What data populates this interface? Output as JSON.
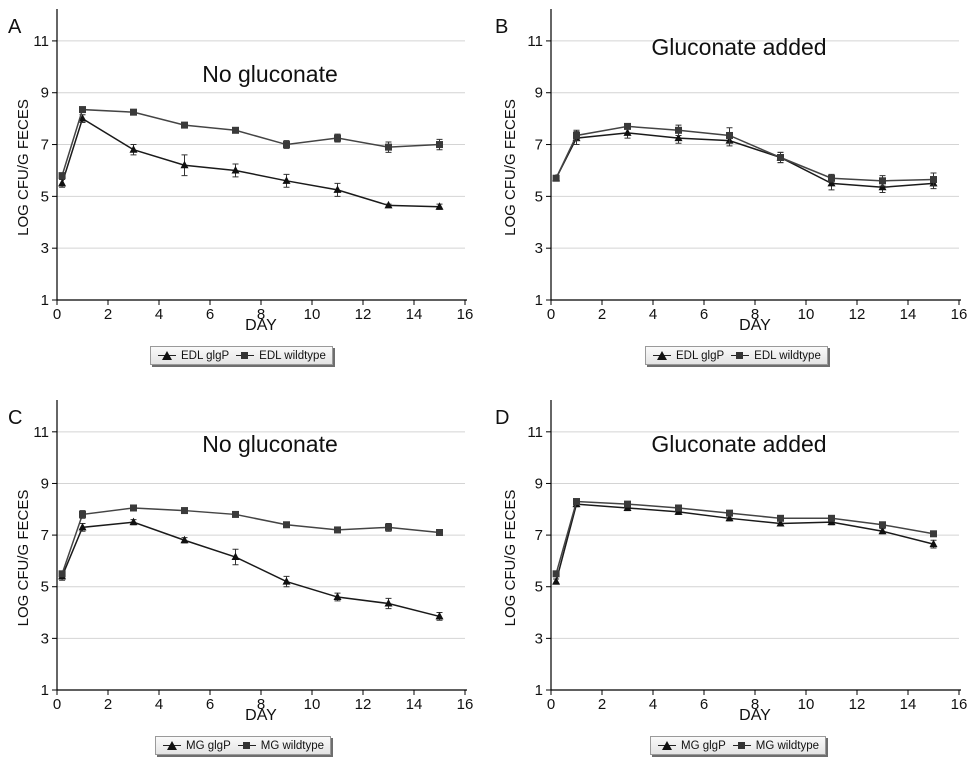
{
  "chart_data": [
    {
      "panel_label": "A",
      "type": "line",
      "title": "No gluconate",
      "xlabel": "DAY",
      "ylabel": "LOG CFU/G FECES",
      "xlim": [
        0,
        16
      ],
      "ylim": [
        1,
        12
      ],
      "xticks": [
        "0",
        "2",
        "4",
        "6",
        "8",
        "10",
        "12",
        "14",
        "16"
      ],
      "yticks": [
        "1",
        "3",
        "5",
        "7",
        "9",
        "11"
      ],
      "grid": "horizontal",
      "legend_position": "bottom-center",
      "x": [
        0.2,
        1,
        3,
        5,
        7,
        9,
        11,
        13,
        15
      ],
      "series": [
        {
          "name": "EDL glgP",
          "marker": "triangle",
          "values": [
            5.5,
            8.0,
            6.8,
            6.2,
            6.0,
            5.6,
            5.25,
            4.65,
            4.6
          ],
          "errors": [
            0.15,
            0.15,
            0.2,
            0.4,
            0.25,
            0.25,
            0.25,
            0.05,
            0.1
          ]
        },
        {
          "name": "EDL wildtype",
          "marker": "square",
          "values": [
            5.8,
            8.35,
            8.25,
            7.75,
            7.55,
            7.0,
            7.25,
            6.9,
            7.0
          ],
          "errors": [
            0.1,
            0.1,
            0.1,
            0.05,
            0.1,
            0.15,
            0.15,
            0.2,
            0.2
          ]
        }
      ]
    },
    {
      "panel_label": "B",
      "type": "line",
      "title": "Gluconate added",
      "xlabel": "DAY",
      "ylabel": "LOG CFU/G FECES",
      "xlim": [
        0,
        16
      ],
      "ylim": [
        1,
        12
      ],
      "xticks": [
        "0",
        "2",
        "4",
        "6",
        "8",
        "10",
        "12",
        "14",
        "16"
      ],
      "yticks": [
        "1",
        "3",
        "5",
        "7",
        "9",
        "11"
      ],
      "grid": "horizontal",
      "legend_position": "bottom-center",
      "x": [
        0.2,
        1,
        3,
        5,
        7,
        9,
        11,
        13,
        15
      ],
      "series": [
        {
          "name": "EDL glgP",
          "marker": "triangle",
          "values": [
            5.7,
            7.25,
            7.45,
            7.25,
            7.15,
            6.5,
            5.5,
            5.35,
            5.5
          ],
          "errors": [
            0.1,
            0.25,
            0.2,
            0.2,
            0.2,
            0.2,
            0.25,
            0.2,
            0.2
          ]
        },
        {
          "name": "EDL wildtype",
          "marker": "square",
          "values": [
            5.7,
            7.35,
            7.7,
            7.55,
            7.35,
            6.5,
            5.7,
            5.6,
            5.65
          ],
          "errors": [
            0.1,
            0.2,
            0.1,
            0.2,
            0.3,
            0.2,
            0.15,
            0.2,
            0.25
          ]
        }
      ]
    },
    {
      "panel_label": "C",
      "type": "line",
      "title": "No gluconate",
      "xlabel": "DAY",
      "ylabel": "LOG CFU/G FECES",
      "xlim": [
        0,
        16
      ],
      "ylim": [
        1,
        12
      ],
      "xticks": [
        "0",
        "2",
        "4",
        "6",
        "8",
        "10",
        "12",
        "14",
        "16"
      ],
      "yticks": [
        "1",
        "3",
        "5",
        "7",
        "9",
        "11"
      ],
      "grid": "horizontal",
      "legend_position": "bottom-center",
      "x": [
        0.2,
        1,
        3,
        5,
        7,
        9,
        11,
        13,
        15
      ],
      "series": [
        {
          "name": "MG glgP",
          "marker": "triangle",
          "values": [
            5.4,
            7.3,
            7.5,
            6.8,
            6.15,
            5.2,
            4.6,
            4.35,
            3.85
          ],
          "errors": [
            0.15,
            0.15,
            0.1,
            0.1,
            0.3,
            0.2,
            0.15,
            0.2,
            0.15
          ]
        },
        {
          "name": "MG wildtype",
          "marker": "square",
          "values": [
            5.5,
            7.8,
            8.05,
            7.95,
            7.8,
            7.4,
            7.2,
            7.3,
            7.1
          ],
          "errors": [
            0.1,
            0.15,
            0.05,
            0.05,
            0.05,
            0.1,
            0.1,
            0.15,
            0.1
          ]
        }
      ]
    },
    {
      "panel_label": "D",
      "type": "line",
      "title": "Gluconate added",
      "xlabel": "DAY",
      "ylabel": "LOG CFU/G FECES",
      "xlim": [
        0,
        16
      ],
      "ylim": [
        1,
        12
      ],
      "xticks": [
        "0",
        "2",
        "4",
        "6",
        "8",
        "10",
        "12",
        "14",
        "16"
      ],
      "yticks": [
        "1",
        "3",
        "5",
        "7",
        "9",
        "11"
      ],
      "grid": "horizontal",
      "legend_position": "bottom-center",
      "x": [
        0.2,
        1,
        3,
        5,
        7,
        9,
        11,
        13,
        15
      ],
      "series": [
        {
          "name": "MG glgP",
          "marker": "triangle",
          "values": [
            5.2,
            8.2,
            8.05,
            7.9,
            7.65,
            7.45,
            7.5,
            7.15,
            6.65
          ],
          "errors": [
            0.1,
            0.1,
            0.1,
            0.1,
            0.1,
            0.1,
            0.1,
            0.1,
            0.15
          ]
        },
        {
          "name": "MG wildtype",
          "marker": "square",
          "values": [
            5.5,
            8.3,
            8.2,
            8.05,
            7.85,
            7.65,
            7.65,
            7.4,
            7.05
          ],
          "errors": [
            0.1,
            0.1,
            0.1,
            0.1,
            0.1,
            0.1,
            0.1,
            0.1,
            0.1
          ]
        }
      ]
    }
  ]
}
